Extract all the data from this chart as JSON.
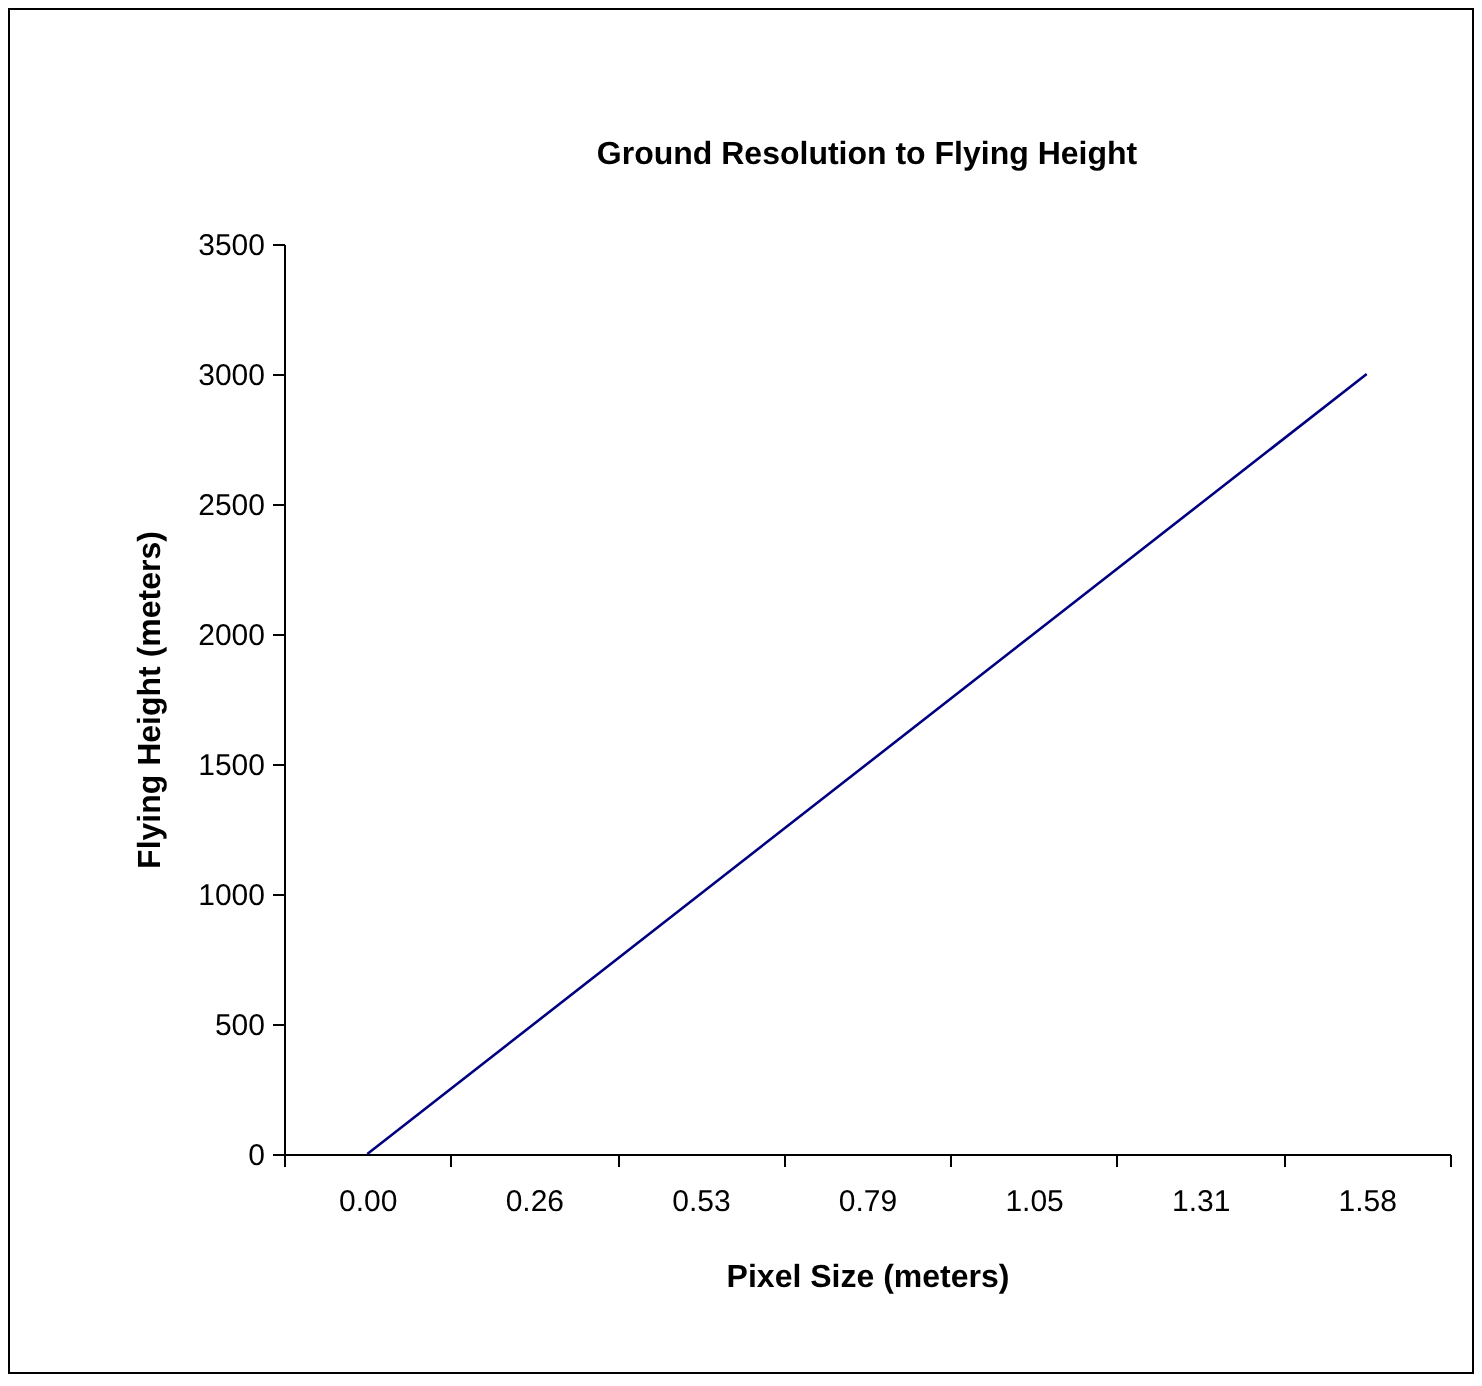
{
  "chart_data": {
    "type": "line",
    "title": "Ground Resolution to Flying Height",
    "xlabel": "Pixel Size (meters)",
    "ylabel": "Flying Height (meters)",
    "categories": [
      "0.00",
      "0.26",
      "0.53",
      "0.79",
      "1.05",
      "1.31",
      "1.58"
    ],
    "series": [
      {
        "color": "#000080",
        "values": [
          0,
          500,
          1000,
          1500,
          2000,
          2500,
          3000
        ]
      }
    ],
    "ylim": [
      0,
      3500
    ],
    "yticks": [
      0,
      500,
      1000,
      1500,
      2000,
      2500,
      3000,
      3500
    ],
    "grid": false,
    "legend": false,
    "marker": "none",
    "line_style": "solid"
  }
}
